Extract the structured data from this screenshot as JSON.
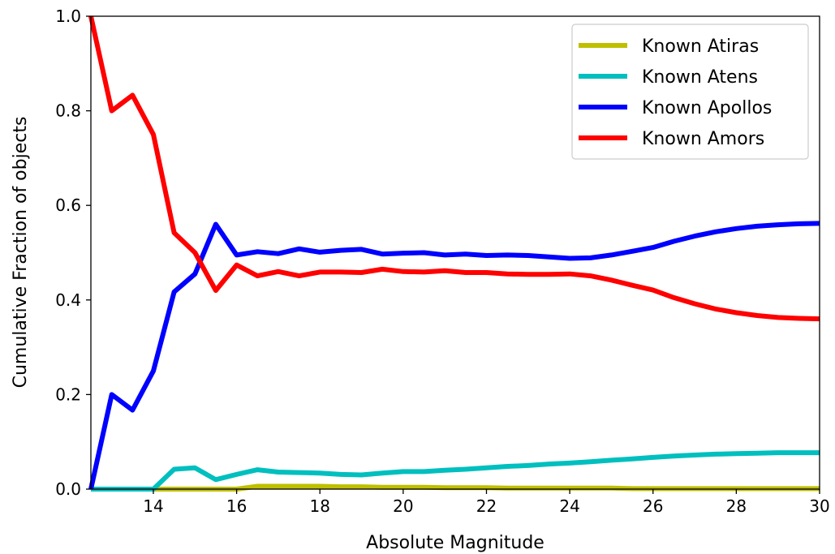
{
  "chart_data": {
    "type": "line",
    "title": "",
    "xlabel": "Absolute Magnitude",
    "ylabel": "Cumulative Fraction of objects",
    "xlim": [
      12.5,
      30
    ],
    "ylim": [
      0,
      1.0
    ],
    "x_ticks": [
      14,
      16,
      18,
      20,
      22,
      24,
      26,
      28,
      30
    ],
    "x_tick_labels": [
      "14",
      "16",
      "18",
      "20",
      "22",
      "24",
      "26",
      "28",
      "30"
    ],
    "y_ticks": [
      0,
      0.2,
      0.4,
      0.6,
      0.8,
      1.0
    ],
    "y_tick_labels": [
      "0.0",
      "0.2",
      "0.4",
      "0.6",
      "0.8",
      "1.0"
    ],
    "grid": false,
    "legend_position": "top-right",
    "series": [
      {
        "name": "Known Atiras",
        "color": "#bfbf00",
        "x": [
          12.5,
          13,
          13.5,
          14,
          14.5,
          15,
          15.5,
          16,
          16.5,
          17,
          17.5,
          18,
          18.5,
          19,
          19.5,
          20,
          20.5,
          21,
          21.5,
          22,
          22.5,
          23,
          23.5,
          24,
          24.5,
          25,
          25.5,
          26,
          26.5,
          27,
          27.5,
          28,
          28.5,
          29,
          29.5,
          30
        ],
        "y": [
          0,
          0,
          0,
          0,
          0,
          0,
          0,
          0,
          0.006,
          0.006,
          0.006,
          0.006,
          0.005,
          0.005,
          0.004,
          0.004,
          0.004,
          0.003,
          0.003,
          0.003,
          0.002,
          0.002,
          0.002,
          0.002,
          0.002,
          0.002,
          0.001,
          0.001,
          0.001,
          0.001,
          0.001,
          0.001,
          0.001,
          0.001,
          0.001,
          0.001
        ]
      },
      {
        "name": "Known Atens",
        "color": "#00bfbf",
        "x": [
          12.5,
          13,
          13.5,
          14,
          14.5,
          15,
          15.5,
          16,
          16.5,
          17,
          17.5,
          18,
          18.5,
          19,
          19.5,
          20,
          20.5,
          21,
          21.5,
          22,
          22.5,
          23,
          23.5,
          24,
          24.5,
          25,
          25.5,
          26,
          26.5,
          27,
          27.5,
          28,
          28.5,
          29,
          29.5,
          30
        ],
        "y": [
          0,
          0,
          0,
          0,
          0.042,
          0.045,
          0.02,
          0.031,
          0.041,
          0.036,
          0.035,
          0.034,
          0.031,
          0.03,
          0.034,
          0.037,
          0.037,
          0.04,
          0.042,
          0.045,
          0.048,
          0.05,
          0.053,
          0.055,
          0.058,
          0.061,
          0.064,
          0.067,
          0.07,
          0.072,
          0.074,
          0.075,
          0.076,
          0.077,
          0.077,
          0.077
        ]
      },
      {
        "name": "Known Apollos",
        "color": "#0000ff",
        "x": [
          12.5,
          13,
          13.5,
          14,
          14.5,
          15,
          15.5,
          16,
          16.5,
          17,
          17.5,
          18,
          18.5,
          19,
          19.5,
          20,
          20.5,
          21,
          21.5,
          22,
          22.5,
          23,
          23.5,
          24,
          24.5,
          25,
          25.5,
          26,
          26.5,
          27,
          27.5,
          28,
          28.5,
          29,
          29.5,
          30
        ],
        "y": [
          0,
          0.2,
          0.167,
          0.25,
          0.417,
          0.455,
          0.56,
          0.495,
          0.502,
          0.498,
          0.508,
          0.501,
          0.505,
          0.507,
          0.497,
          0.499,
          0.5,
          0.495,
          0.497,
          0.494,
          0.495,
          0.494,
          0.491,
          0.488,
          0.489,
          0.495,
          0.503,
          0.511,
          0.524,
          0.535,
          0.544,
          0.551,
          0.556,
          0.559,
          0.561,
          0.562
        ]
      },
      {
        "name": "Known Amors",
        "color": "#ff0000",
        "x": [
          12.5,
          13,
          13.5,
          14,
          14.5,
          15,
          15.5,
          16,
          16.5,
          17,
          17.5,
          18,
          18.5,
          19,
          19.5,
          20,
          20.5,
          21,
          21.5,
          22,
          22.5,
          23,
          23.5,
          24,
          24.5,
          25,
          25.5,
          26,
          26.5,
          27,
          27.5,
          28,
          28.5,
          29,
          29.5,
          30
        ],
        "y": [
          1.0,
          0.8,
          0.833,
          0.75,
          0.542,
          0.5,
          0.42,
          0.474,
          0.451,
          0.46,
          0.451,
          0.459,
          0.459,
          0.458,
          0.465,
          0.46,
          0.459,
          0.462,
          0.458,
          0.458,
          0.455,
          0.454,
          0.454,
          0.455,
          0.451,
          0.442,
          0.431,
          0.421,
          0.405,
          0.392,
          0.381,
          0.373,
          0.367,
          0.363,
          0.361,
          0.36
        ]
      }
    ]
  }
}
